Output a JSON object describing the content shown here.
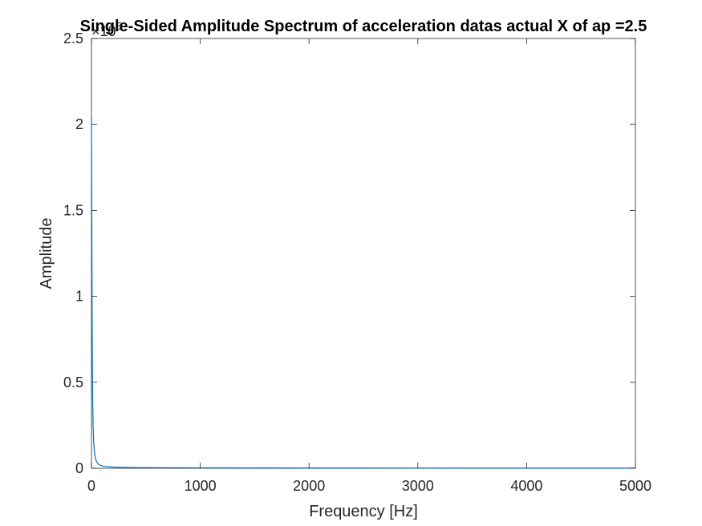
{
  "chart_data": {
    "type": "line",
    "title": "Single-Sided Amplitude Spectrum of acceleration datas actual X of ap =2.5",
    "xlabel": "Frequency [Hz]",
    "ylabel": "Amplitude",
    "xlim": [
      0,
      5000
    ],
    "ylim": [
      0,
      250000
    ],
    "y_exponent_label": "×10",
    "y_exponent_power": "5",
    "xticks": [
      0,
      1000,
      2000,
      3000,
      4000,
      5000
    ],
    "xtick_labels": [
      "0",
      "1000",
      "2000",
      "3000",
      "4000",
      "5000"
    ],
    "yticks": [
      0,
      50000,
      100000,
      150000,
      200000,
      250000
    ],
    "ytick_labels": [
      "0",
      "0.5",
      "1",
      "1.5",
      "2",
      "2.5"
    ],
    "grid": false,
    "box": true,
    "series": [
      {
        "color": "#0072BD",
        "x": [
          0,
          3,
          6,
          10,
          15,
          20,
          25,
          30,
          40,
          50,
          60,
          80,
          100,
          150,
          200,
          300,
          500,
          1000,
          2000,
          3000,
          4000,
          5000
        ],
        "y": [
          205000,
          150000,
          90000,
          45000,
          25000,
          16000,
          11000,
          8000,
          5000,
          3500,
          2600,
          1800,
          1300,
          900,
          700,
          500,
          350,
          250,
          180,
          150,
          130,
          120
        ]
      }
    ]
  }
}
